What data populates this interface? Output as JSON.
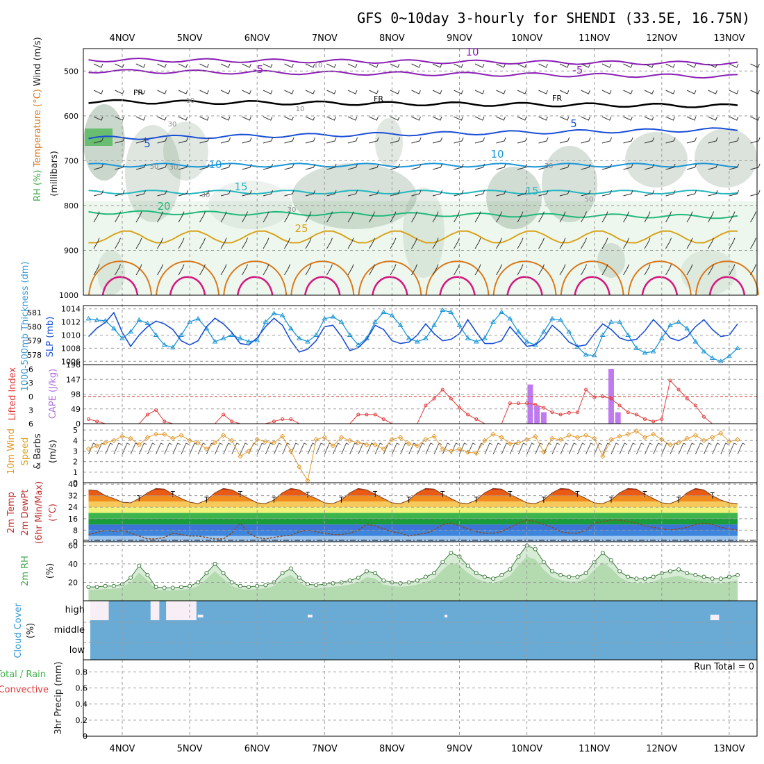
{
  "chart_data": {
    "type": "meteogram",
    "title": "GFS 0~10day 3-hourly for SHENDI (33.5E, 16.75N)",
    "x_dates": [
      "4NOV",
      "5NOV",
      "6NOV",
      "7NOV",
      "8NOV",
      "9NOV",
      "10NOV",
      "11NOV",
      "12NOV",
      "13NOV"
    ],
    "time_range_days": [
      -0.5,
      9.3
    ],
    "colors": {
      "purple": "#8a1fb5",
      "blue": "#1a4fd6",
      "cyan": "#1996d8",
      "teal": "#21b7bf",
      "green": "#20b87a",
      "orange": "#d9a21b",
      "darkorange": "#d9781a",
      "magenta": "#d4187f",
      "cape": "#c07af0",
      "li": "#e23a3a",
      "wind": "#e39a2c",
      "cloud": "#6aabd6",
      "rh": "#3fa84a"
    },
    "panels": [
      {
        "id": "upper_air",
        "labels": [
          "Wind (m/s)",
          "Temperature (°C)",
          "RH (%)",
          "(millibars)"
        ],
        "yticks": [
          500,
          600,
          700,
          800,
          900,
          1000
        ],
        "ylim": [
          450,
          1000
        ],
        "rh_shading_levels": [
          30,
          50,
          70,
          90
        ],
        "contour_labels": [
          {
            "text": "10",
            "level": "400mb",
            "color": "purple"
          },
          {
            "text": "-5",
            "level": "500mb",
            "color": "purple"
          },
          {
            "text": "-5",
            "level": "505mb",
            "color": "purple"
          },
          {
            "text": "FR",
            "level": "565mb",
            "color": "black"
          },
          {
            "text": "FR",
            "level": "570mb",
            "color": "black"
          },
          {
            "text": "FR",
            "level": "575mb",
            "color": "black"
          },
          {
            "text": "5",
            "level": "660mb",
            "color": "blue"
          },
          {
            "text": "5",
            "level": "620mb",
            "color": "blue"
          },
          {
            "text": "10",
            "level": "710mb",
            "color": "cyan"
          },
          {
            "text": "10",
            "level": "690mb",
            "color": "cyan"
          },
          {
            "text": "15",
            "level": "770mb",
            "color": "teal"
          },
          {
            "text": "15",
            "level": "760mb",
            "color": "teal"
          },
          {
            "text": "20",
            "level": "810mb",
            "color": "green"
          },
          {
            "text": "25",
            "level": "860mb",
            "color": "orange"
          }
        ],
        "rh_labels": [
          "10",
          "10",
          "10",
          "30",
          "30",
          "30",
          "30",
          "30",
          "50",
          "50"
        ],
        "isotherms": [
          {
            "name": "-10",
            "color": "purple",
            "p_base": 475,
            "p_trend": 8
          },
          {
            "name": "-5",
            "color": "purple",
            "p_base": 500,
            "p_trend": 12
          },
          {
            "name": "FR",
            "color": "black",
            "p_base": 568,
            "p_trend": 10
          },
          {
            "name": "5",
            "color": "blue",
            "p_base": 650,
            "p_trend": -20
          },
          {
            "name": "10",
            "color": "cyan",
            "p_base": 710,
            "p_trend": 0
          },
          {
            "name": "15",
            "color": "teal",
            "p_base": 770,
            "p_trend": 0
          },
          {
            "name": "20",
            "color": "green",
            "p_base": 815,
            "p_trend": 10
          },
          {
            "name": "25",
            "color": "orange",
            "p_base": 870,
            "p_trend": 0
          }
        ]
      },
      {
        "id": "slp_thickness",
        "labels": [
          "1000-500mb",
          "Thickness (dm)",
          "SLP (mb)"
        ],
        "left_ticks": [
          578,
          579,
          580,
          581
        ],
        "right_ticks": [
          1006,
          1008,
          1010,
          1012,
          1014
        ],
        "slp_mb": [
          1012.5,
          1012.3,
          1012.2,
          1011.0,
          1009.5,
          1010.5,
          1012.3,
          1011.8,
          1010.0,
          1008.5,
          1008.1,
          1010.0,
          1012.0,
          1012.5,
          1011.0,
          1009.0,
          1009.5,
          1010.0,
          1009.5,
          1009.0,
          1009.2,
          1012.0,
          1013.3,
          1013.0,
          1011.0,
          1009.5,
          1009.0,
          1010.0,
          1012.5,
          1012.8,
          1012.0,
          1010.0,
          1008.5,
          1009.5,
          1012.0,
          1013.5,
          1013.0,
          1011.5,
          1009.5,
          1009.0,
          1009.5,
          1011.5,
          1013.8,
          1013.5,
          1011.5,
          1009.5,
          1009.0,
          1009.5,
          1012.0,
          1013.5,
          1012.5,
          1010.5,
          1009.0,
          1008.5,
          1010.5,
          1012.5,
          1012.3,
          1010.5,
          1008.2,
          1007.0,
          1006.9,
          1010.0,
          1012.0,
          1012.0,
          1010.0,
          1008.0,
          1007.3,
          1007.5,
          1009.5,
          1011.5,
          1012.0,
          1011.0,
          1009.0,
          1007.5,
          1006.5,
          1006.0,
          1006.8,
          1008.0
        ],
        "thickness_dm": [
          579.3,
          579.9,
          580.3,
          581.0,
          579.6,
          578.6,
          579.4,
          580.0,
          580.4,
          580.2,
          579.8,
          579.0,
          578.7,
          579.0,
          580.0,
          580.6,
          580.2,
          579.6,
          578.8,
          578.7,
          579.2,
          580.0,
          580.6,
          580.1,
          579.0,
          578.2,
          578.4,
          579.0,
          580.0,
          580.1,
          579.3,
          578.3,
          578.5,
          579.1,
          580.1,
          579.8,
          579.0,
          578.8,
          578.9,
          579.4,
          580.2,
          579.5,
          579.0,
          579.1,
          579.5,
          580.5,
          579.6,
          578.8,
          578.8,
          579.0,
          580.0,
          579.3,
          578.6,
          578.7,
          579.2,
          580.1,
          579.6,
          578.9,
          578.6,
          578.7,
          579.5,
          580.2,
          579.8,
          579.2,
          579.0,
          579.1,
          579.7,
          580.5,
          579.9,
          579.2,
          579.0,
          579.3,
          580.0,
          580.5,
          579.8,
          579.3,
          579.4,
          580.2
        ]
      },
      {
        "id": "stability",
        "labels": [
          "Lifted Index",
          "CAPE (J/kg)"
        ],
        "li_ticks": [
          -6,
          -3,
          0,
          3,
          6
        ],
        "cape_ticks": [
          0,
          49,
          98,
          147,
          196
        ],
        "lifted_index": [
          5.0,
          5.5,
          6,
          6,
          6,
          6,
          6,
          4,
          3.0,
          5.5,
          6,
          6,
          6,
          6,
          6,
          6,
          4,
          5.5,
          6,
          6,
          6,
          6,
          5.5,
          5.0,
          5.0,
          6,
          6,
          6,
          6,
          6,
          6,
          6,
          4,
          4.0,
          4,
          5,
          6,
          6,
          6,
          6,
          2,
          0.5,
          -1.5,
          0.5,
          2.5,
          4,
          5,
          6,
          6,
          6,
          1.5,
          1.5,
          1.5,
          1.8,
          2.5,
          3.5,
          4,
          3.6,
          3.5,
          -1.5,
          0.2,
          0.0,
          0.5,
          2.0,
          3.5,
          4,
          5,
          5.5,
          5,
          -3.5,
          -1.5,
          0.5,
          2.0,
          4.5,
          6,
          6,
          6,
          6
        ],
        "cape_bars": [
          {
            "day": 6.05,
            "value": 130
          },
          {
            "day": 6.15,
            "value": 58
          },
          {
            "day": 6.25,
            "value": 38
          },
          {
            "day": 7.25,
            "value": 182
          },
          {
            "day": 7.35,
            "value": 38
          }
        ]
      },
      {
        "id": "wind",
        "labels": [
          "10m Wind",
          "Speed",
          "& Barbs",
          "(m/s)"
        ],
        "yticks": [
          0,
          1,
          2,
          3,
          4,
          5
        ],
        "speed_ms": [
          3.2,
          3.5,
          3.8,
          4.0,
          4.4,
          4.2,
          3.6,
          4.3,
          4.6,
          4.6,
          4.2,
          4.5,
          4.0,
          3.8,
          3.2,
          3.8,
          4.5,
          4.0,
          2.5,
          3.0,
          4.1,
          3.9,
          3.8,
          4.4,
          3.0,
          1.5,
          0.2,
          4.1,
          4.3,
          3.5,
          4.3,
          4.0,
          3.8,
          3.6,
          3.6,
          3.2,
          4.1,
          4.3,
          3.7,
          3.5,
          4.1,
          4.4,
          3.2,
          3.0,
          3.2,
          2.9,
          2.8,
          4.0,
          4.6,
          4.3,
          3.7,
          3.8,
          4.1,
          4.4,
          2.9,
          4.2,
          4.1,
          4.5,
          4.3,
          4.5,
          4.2,
          2.5,
          4.1,
          4.4,
          4.6,
          4.9,
          4.3,
          4.6,
          4.1,
          3.6,
          3.8,
          4.2,
          4.5,
          4.0,
          4.3,
          4.7,
          3.9,
          4.1
        ]
      },
      {
        "id": "temperature",
        "labels": [
          "2m Temp",
          "2m DewPt",
          "(6hr Min/Max)",
          "(°C)"
        ],
        "yticks": [
          0,
          8,
          16,
          24,
          32,
          40
        ],
        "temp_c": [
          36,
          35.5,
          32,
          30,
          27.5,
          27,
          30,
          34,
          37,
          36.5,
          33,
          30,
          27.5,
          26.5,
          29,
          34,
          37,
          36,
          33,
          30,
          27,
          26.5,
          29,
          34,
          37,
          36,
          32.5,
          30,
          27,
          26.5,
          29,
          34,
          37,
          36,
          33,
          30,
          27,
          26.5,
          29,
          34,
          37,
          36.5,
          33,
          30,
          27,
          26.5,
          29,
          34,
          37,
          36.5,
          33,
          30,
          27,
          26.5,
          29,
          34,
          37,
          36.5,
          33,
          30,
          27,
          26.5,
          29,
          34,
          37,
          36.5,
          33,
          30,
          27,
          26.5,
          29,
          34,
          37,
          36,
          32,
          29,
          27,
          26.5
        ],
        "dewpt_c": [
          5,
          6.5,
          8,
          7,
          8,
          6,
          4,
          2,
          2,
          3,
          6,
          5,
          4,
          4,
          3,
          2,
          2,
          6,
          13,
          6,
          3,
          2,
          3,
          4,
          4.5,
          7,
          8,
          7,
          6,
          5,
          5,
          6,
          8,
          12,
          11,
          9,
          7,
          6,
          4,
          5,
          6,
          8,
          12,
          13,
          11,
          9,
          7,
          6,
          6,
          7,
          10,
          13,
          15,
          14,
          12,
          10,
          7,
          6,
          6,
          8,
          13,
          14,
          15,
          15,
          14,
          13,
          11,
          10,
          9,
          8,
          9,
          10,
          12,
          13,
          12,
          10,
          9,
          8
        ]
      },
      {
        "id": "rh2m",
        "labels": [
          "2m RH",
          "(%)"
        ],
        "yticks": [
          20,
          40,
          60
        ],
        "rh_pct": [
          15,
          15,
          16,
          16,
          18,
          25,
          38,
          28,
          15,
          14,
          14,
          15,
          16,
          20,
          30,
          40,
          30,
          20,
          16,
          15,
          16,
          17,
          20,
          30,
          35,
          25,
          18,
          17,
          18,
          19,
          20,
          22,
          25,
          32,
          30,
          22,
          20,
          19,
          20,
          22,
          26,
          30,
          42,
          52,
          48,
          38,
          30,
          26,
          24,
          28,
          34,
          48,
          60,
          56,
          42,
          32,
          28,
          26,
          26,
          30,
          42,
          52,
          44,
          32,
          26,
          24,
          24,
          26,
          30,
          32,
          34,
          30,
          28,
          26,
          24,
          24,
          26,
          28
        ]
      },
      {
        "id": "cloud",
        "labels": [
          "Cloud Cover",
          "(%)"
        ],
        "ylabels": [
          "high",
          "middle",
          "low"
        ],
        "high_gaps_days": [
          [
            -0.5,
            -0.2
          ],
          [
            0.42,
            0.55
          ],
          [
            0.65,
            1.1
          ]
        ],
        "small_gaps_days": [
          [
            1.12,
            1.2
          ],
          [
            2.75,
            2.82
          ],
          [
            4.78,
            4.82
          ],
          [
            8.72,
            8.85
          ]
        ]
      },
      {
        "id": "precip",
        "labels": [
          "Total / Rain",
          "Convective",
          "3hr Precip (mm)"
        ],
        "yticks": [
          0,
          0.2,
          0.4,
          0.6,
          0.8
        ],
        "ylim": [
          0,
          0.95
        ],
        "run_total_label": "Run Total = 0"
      }
    ]
  }
}
